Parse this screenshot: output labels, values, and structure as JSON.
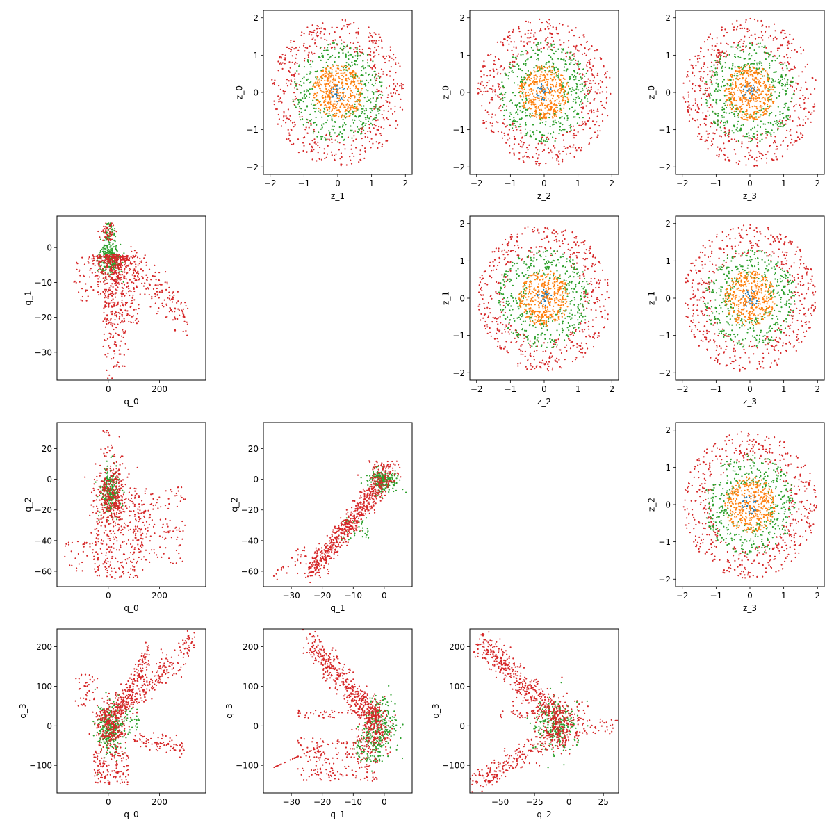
{
  "chart_data": {
    "type": "scatter",
    "layout": "pairwise-grid",
    "rows": 4,
    "cols": 4,
    "marker_size": "small",
    "grid": false,
    "colors": {
      "blue": "#1f77b4",
      "orange": "#ff7f0e",
      "green": "#2ca02c",
      "red": "#d62728"
    },
    "subplots": [
      {
        "row": 0,
        "col": 1,
        "xlabel": "z_1",
        "ylabel": "z_0",
        "xlim": [
          -2.2,
          2.2
        ],
        "ylim": [
          -2.2,
          2.2
        ],
        "xticks": [
          -2,
          -1,
          0,
          1,
          2
        ],
        "yticks": [
          -2,
          -1,
          0,
          1,
          2
        ],
        "pattern": "z",
        "seed": 11
      },
      {
        "row": 0,
        "col": 2,
        "xlabel": "z_2",
        "ylabel": "z_0",
        "xlim": [
          -2.2,
          2.2
        ],
        "ylim": [
          -2.2,
          2.2
        ],
        "xticks": [
          -2,
          -1,
          0,
          1,
          2
        ],
        "yticks": [
          -2,
          -1,
          0,
          1,
          2
        ],
        "pattern": "z",
        "seed": 12
      },
      {
        "row": 0,
        "col": 3,
        "xlabel": "z_3",
        "ylabel": "z_0",
        "xlim": [
          -2.2,
          2.2
        ],
        "ylim": [
          -2.2,
          2.2
        ],
        "xticks": [
          -2,
          -1,
          0,
          1,
          2
        ],
        "yticks": [
          -2,
          -1,
          0,
          1,
          2
        ],
        "pattern": "z",
        "seed": 13
      },
      {
        "row": 1,
        "col": 0,
        "xlabel": "q_0",
        "ylabel": "q_1",
        "xlim": [
          -200,
          380
        ],
        "ylim": [
          -38,
          9
        ],
        "xticks": [
          0,
          200
        ],
        "yticks": [
          -30,
          -20,
          -10,
          0
        ],
        "pattern": "q0q1",
        "seed": 21
      },
      {
        "row": 1,
        "col": 2,
        "xlabel": "z_2",
        "ylabel": "z_1",
        "xlim": [
          -2.2,
          2.2
        ],
        "ylim": [
          -2.2,
          2.2
        ],
        "xticks": [
          -2,
          -1,
          0,
          1,
          2
        ],
        "yticks": [
          -2,
          -1,
          0,
          1,
          2
        ],
        "pattern": "z",
        "seed": 22
      },
      {
        "row": 1,
        "col": 3,
        "xlabel": "z_3",
        "ylabel": "z_1",
        "xlim": [
          -2.2,
          2.2
        ],
        "ylim": [
          -2.2,
          2.2
        ],
        "xticks": [
          -2,
          -1,
          0,
          1,
          2
        ],
        "yticks": [
          -2,
          -1,
          0,
          1,
          2
        ],
        "pattern": "z",
        "seed": 23
      },
      {
        "row": 2,
        "col": 0,
        "xlabel": "q_0",
        "ylabel": "q_2",
        "xlim": [
          -200,
          380
        ],
        "ylim": [
          -70,
          37
        ],
        "xticks": [
          0,
          200
        ],
        "yticks": [
          -60,
          -40,
          -20,
          0,
          20
        ],
        "pattern": "q0q2",
        "seed": 31
      },
      {
        "row": 2,
        "col": 1,
        "xlabel": "q_1",
        "ylabel": "q_2",
        "xlim": [
          -39,
          9
        ],
        "ylim": [
          -70,
          37
        ],
        "xticks": [
          -30,
          -20,
          -10,
          0
        ],
        "yticks": [
          -60,
          -40,
          -20,
          0,
          20
        ],
        "pattern": "q1q2",
        "seed": 32
      },
      {
        "row": 2,
        "col": 3,
        "xlabel": "z_3",
        "ylabel": "z_2",
        "xlim": [
          -2.2,
          2.2
        ],
        "ylim": [
          -2.2,
          2.2
        ],
        "xticks": [
          -2,
          -1,
          0,
          1,
          2
        ],
        "yticks": [
          -2,
          -1,
          0,
          1,
          2
        ],
        "pattern": "z",
        "seed": 33
      },
      {
        "row": 3,
        "col": 0,
        "xlabel": "q_0",
        "ylabel": "q_3",
        "xlim": [
          -200,
          380
        ],
        "ylim": [
          -170,
          245
        ],
        "xticks": [
          0,
          200
        ],
        "yticks": [
          -100,
          0,
          100,
          200
        ],
        "pattern": "q0q3",
        "seed": 41
      },
      {
        "row": 3,
        "col": 1,
        "xlabel": "q_1",
        "ylabel": "q_3",
        "xlim": [
          -39,
          9
        ],
        "ylim": [
          -170,
          245
        ],
        "xticks": [
          -30,
          -20,
          -10,
          0
        ],
        "yticks": [
          -100,
          0,
          100,
          200
        ],
        "pattern": "q1q3",
        "seed": 42
      },
      {
        "row": 3,
        "col": 2,
        "xlabel": "q_2",
        "ylabel": "q_3",
        "xlim": [
          -72,
          36
        ],
        "ylim": [
          -170,
          245
        ],
        "xticks": [
          -50,
          -25,
          0,
          25
        ],
        "yticks": [
          -100,
          0,
          100,
          200
        ],
        "pattern": "q2q3",
        "seed": 43
      }
    ]
  }
}
